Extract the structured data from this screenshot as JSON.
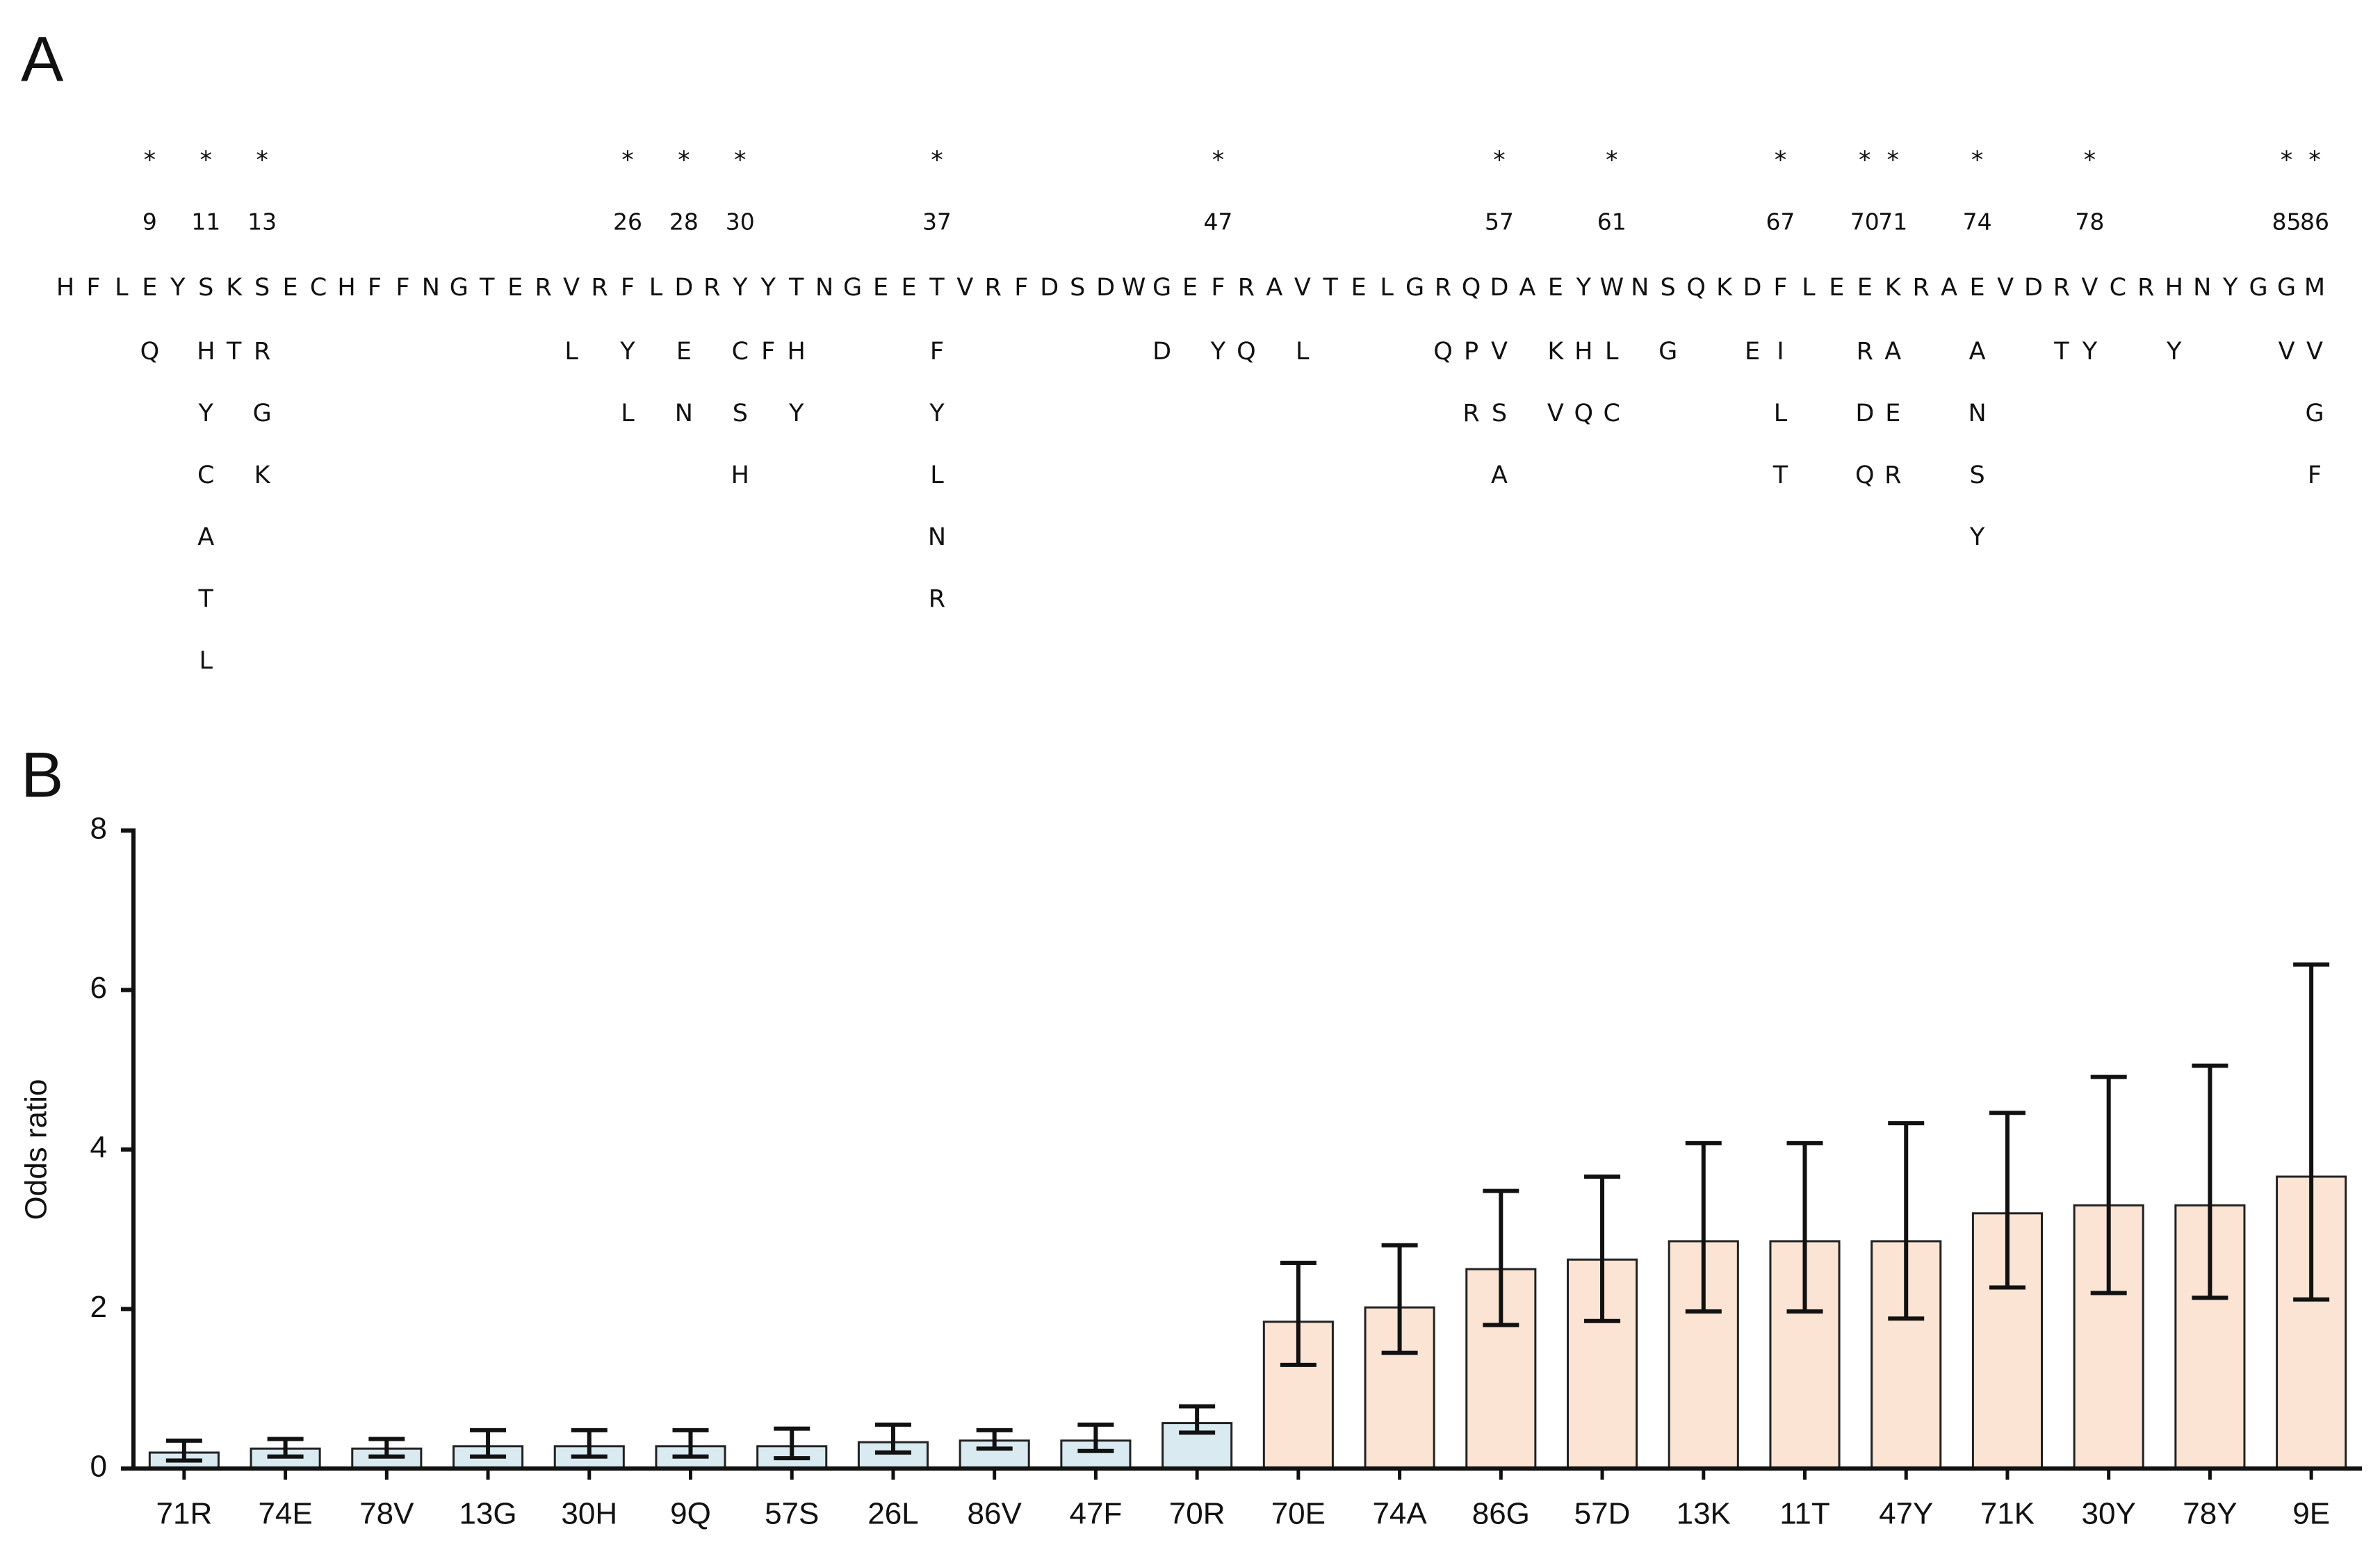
{
  "sequence": {
    "panel_label": "A",
    "marker": "*",
    "columns": [
      {
        "residue": "H"
      },
      {
        "residue": "F"
      },
      {
        "residue": "L"
      },
      {
        "residue": "E",
        "position": 9,
        "variants": [
          "Q"
        ]
      },
      {
        "residue": "Y"
      },
      {
        "residue": "S",
        "position": 11,
        "variants": [
          "H",
          "Y",
          "C",
          "A",
          "T",
          "L"
        ]
      },
      {
        "residue": "K",
        "variants": [
          "T"
        ]
      },
      {
        "residue": "S",
        "position": 13,
        "variants": [
          "R",
          "G",
          "K"
        ]
      },
      {
        "residue": "E"
      },
      {
        "residue": "C"
      },
      {
        "residue": "H"
      },
      {
        "residue": "F"
      },
      {
        "residue": "F"
      },
      {
        "residue": "N"
      },
      {
        "residue": "G"
      },
      {
        "residue": "T"
      },
      {
        "residue": "E"
      },
      {
        "residue": "R"
      },
      {
        "residue": "V",
        "variants": [
          "L"
        ]
      },
      {
        "residue": "R"
      },
      {
        "residue": "F",
        "position": 26,
        "variants": [
          "Y",
          "L"
        ]
      },
      {
        "residue": "L"
      },
      {
        "residue": "D",
        "position": 28,
        "variants": [
          "E",
          "N"
        ]
      },
      {
        "residue": "R"
      },
      {
        "residue": "Y",
        "position": 30,
        "variants": [
          "C",
          "S",
          "H"
        ]
      },
      {
        "residue": "Y",
        "variants": [
          "F"
        ]
      },
      {
        "residue": "T",
        "variants": [
          "H",
          "Y"
        ]
      },
      {
        "residue": "N"
      },
      {
        "residue": "G"
      },
      {
        "residue": "E"
      },
      {
        "residue": "E"
      },
      {
        "residue": "T",
        "position": 37,
        "variants": [
          "F",
          "Y",
          "L",
          "N",
          "R"
        ]
      },
      {
        "residue": "V"
      },
      {
        "residue": "R"
      },
      {
        "residue": "F"
      },
      {
        "residue": "D"
      },
      {
        "residue": "S"
      },
      {
        "residue": "D"
      },
      {
        "residue": "W"
      },
      {
        "residue": "G",
        "variants": [
          "D"
        ]
      },
      {
        "residue": "E"
      },
      {
        "residue": "F",
        "position": 47,
        "variants": [
          "Y"
        ]
      },
      {
        "residue": "R",
        "variants": [
          "Q"
        ]
      },
      {
        "residue": "A"
      },
      {
        "residue": "V",
        "variants": [
          "L"
        ]
      },
      {
        "residue": "T"
      },
      {
        "residue": "E"
      },
      {
        "residue": "L"
      },
      {
        "residue": "G"
      },
      {
        "residue": "R",
        "variants": [
          "Q"
        ]
      },
      {
        "residue": "Q",
        "variants": [
          "P",
          "R"
        ]
      },
      {
        "residue": "D",
        "position": 57,
        "variants": [
          "V",
          "S",
          "A"
        ]
      },
      {
        "residue": "A"
      },
      {
        "residue": "E",
        "variants": [
          "K",
          "V"
        ]
      },
      {
        "residue": "Y",
        "variants": [
          "H",
          "Q"
        ]
      },
      {
        "residue": "W",
        "position": 61,
        "variants": [
          "L",
          "C"
        ]
      },
      {
        "residue": "N"
      },
      {
        "residue": "S",
        "variants": [
          "G"
        ]
      },
      {
        "residue": "Q"
      },
      {
        "residue": "K"
      },
      {
        "residue": "D",
        "variants": [
          "E"
        ]
      },
      {
        "residue": "F",
        "position": 67,
        "variants": [
          "I",
          "L",
          "T"
        ]
      },
      {
        "residue": "L"
      },
      {
        "residue": "E"
      },
      {
        "residue": "E",
        "position": 70,
        "variants": [
          "R",
          "D",
          "Q"
        ]
      },
      {
        "residue": "K",
        "position": 71,
        "variants": [
          "A",
          "E",
          "R"
        ]
      },
      {
        "residue": "R"
      },
      {
        "residue": "A"
      },
      {
        "residue": "E",
        "position": 74,
        "variants": [
          "A",
          "N",
          "S",
          "Y"
        ]
      },
      {
        "residue": "V"
      },
      {
        "residue": "D"
      },
      {
        "residue": "R",
        "variants": [
          "T"
        ]
      },
      {
        "residue": "V",
        "position": 78,
        "variants": [
          "Y"
        ]
      },
      {
        "residue": "C"
      },
      {
        "residue": "R"
      },
      {
        "residue": "H",
        "variants": [
          "Y"
        ]
      },
      {
        "residue": "N"
      },
      {
        "residue": "Y"
      },
      {
        "residue": "G"
      },
      {
        "residue": "G",
        "position": 85,
        "variants": [
          "V"
        ]
      },
      {
        "residue": "M",
        "position": 86,
        "variants": [
          "V",
          "G",
          "F"
        ]
      }
    ]
  },
  "chart_data": {
    "type": "bar",
    "panel_label": "B",
    "y_label": "Odds ratio",
    "categories": [
      "71R",
      "74E",
      "78V",
      "13G",
      "30H",
      "9Q",
      "57S",
      "26L",
      "86V",
      "47F",
      "70R",
      "70E",
      "74A",
      "86G",
      "57D",
      "13K",
      "11T",
      "47Y",
      "71K",
      "30Y",
      "78Y",
      "9E"
    ],
    "values": [
      0.2,
      0.25,
      0.25,
      0.28,
      0.28,
      0.28,
      0.28,
      0.33,
      0.35,
      0.35,
      0.57,
      1.84,
      2.02,
      2.5,
      2.62,
      2.85,
      2.85,
      2.85,
      3.2,
      3.3,
      3.3,
      3.66
    ],
    "ci_low": [
      0.1,
      0.15,
      0.15,
      0.15,
      0.15,
      0.15,
      0.13,
      0.2,
      0.25,
      0.22,
      0.45,
      1.3,
      1.45,
      1.8,
      1.85,
      1.97,
      1.97,
      1.88,
      2.27,
      2.2,
      2.14,
      2.12
    ],
    "ci_high": [
      0.35,
      0.37,
      0.37,
      0.48,
      0.48,
      0.48,
      0.5,
      0.55,
      0.48,
      0.55,
      0.78,
      2.58,
      2.8,
      3.48,
      3.66,
      4.08,
      4.08,
      4.33,
      4.46,
      4.91,
      5.05,
      6.32
    ],
    "colors": [
      "#d9eaf1",
      "#d9eaf1",
      "#d9eaf1",
      "#d9eaf1",
      "#d9eaf1",
      "#d9eaf1",
      "#d9eaf1",
      "#d9eaf1",
      "#d9eaf1",
      "#d9eaf1",
      "#d9eaf1",
      "#fbe4d4",
      "#fbe4d4",
      "#fbe4d4",
      "#fbe4d4",
      "#fbe4d4",
      "#fbe4d4",
      "#fbe4d4",
      "#fbe4d4",
      "#fbe4d4",
      "#fbe4d4",
      "#fbe4d4"
    ],
    "ylim": [
      0,
      8
    ],
    "yticks": [
      0,
      2,
      4,
      6,
      8
    ],
    "grid": false
  }
}
